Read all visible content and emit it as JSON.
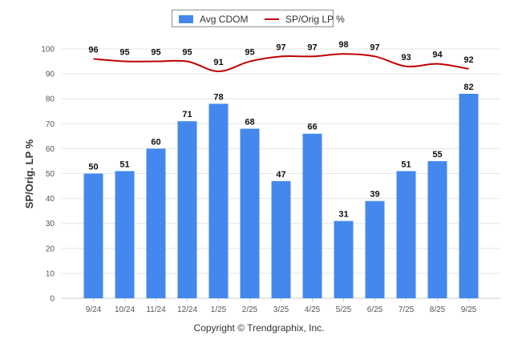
{
  "colors": {
    "bar": "#4488EE",
    "line": "#C00000",
    "grid": "#E6E6E6",
    "axis": "#CCCCCC",
    "text": "#333333"
  },
  "legend": {
    "bar_label": "Avg CDOM",
    "line_label": "SP/Orig LP %"
  },
  "footer": {
    "copyright": "Copyright © Trendgraphix, Inc."
  },
  "chart_data": {
    "type": "bar",
    "categories": [
      "9/24",
      "10/24",
      "11/24",
      "12/24",
      "1/25",
      "2/25",
      "3/25",
      "4/25",
      "5/25",
      "6/25",
      "7/25",
      "8/25",
      "9/25"
    ],
    "series": [
      {
        "name": "Avg CDOM",
        "type": "bar",
        "values": [
          50,
          51,
          60,
          71,
          78,
          68,
          47,
          66,
          31,
          39,
          51,
          55,
          82
        ]
      },
      {
        "name": "SP/Orig LP %",
        "type": "line",
        "values": [
          96,
          95,
          95,
          95,
          91,
          95,
          97,
          97,
          98,
          97,
          93,
          94,
          92
        ]
      }
    ],
    "title": "",
    "xlabel": "",
    "ylabel": "SP/Orig. LP %",
    "ylim": [
      0,
      100
    ],
    "yticks": [
      0,
      10,
      20,
      30,
      40,
      50,
      60,
      70,
      80,
      90,
      100
    ],
    "grid": true,
    "data_labels": true,
    "legend_position": "top-center"
  }
}
